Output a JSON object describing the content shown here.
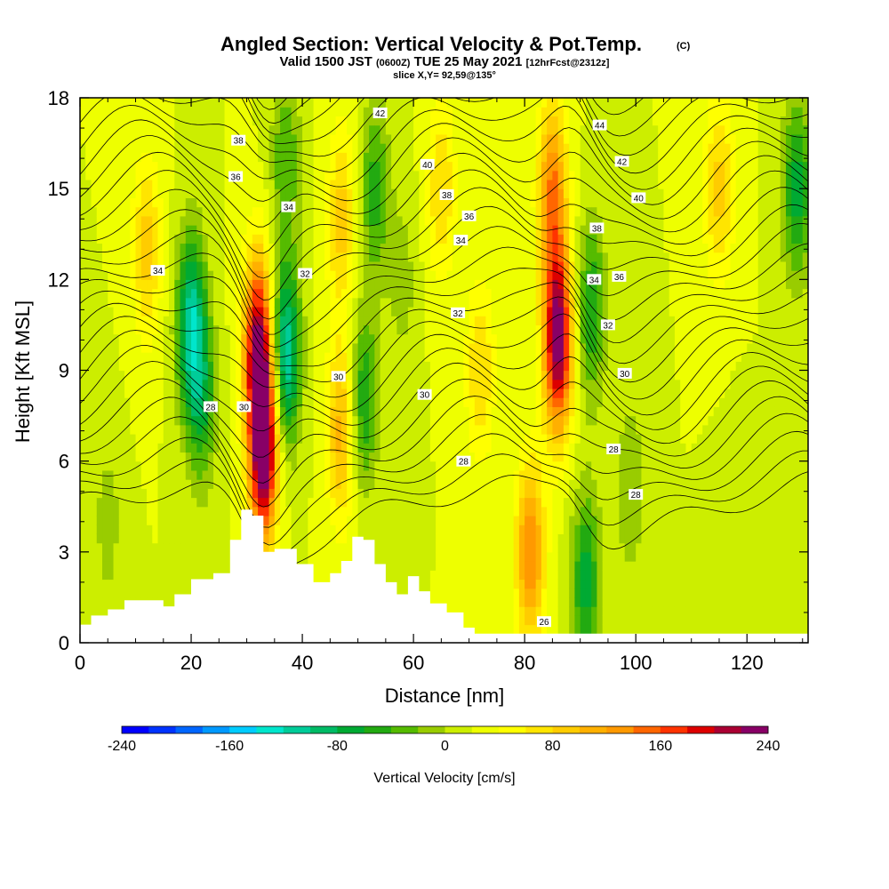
{
  "title": {
    "main": "Angled Section: Vertical Velocity & Pot.Temp.",
    "copyright": "(C)",
    "valid_prefix": "Valid 1500 JST",
    "valid_utc": "(0600Z)",
    "valid_date": "TUE 25 May 2021",
    "forecast": "[12hrFcst@2312z]",
    "slice": "slice X,Y= 92,59@135°"
  },
  "chart_data": {
    "type": "heatmap",
    "xlabel": "Distance [nm]",
    "ylabel": "Height [Kft MSL]",
    "xlim": [
      0,
      131
    ],
    "ylim": [
      0,
      18
    ],
    "x_ticks": [
      "0",
      "20",
      "40",
      "60",
      "80",
      "100",
      "120"
    ],
    "y_ticks": [
      "0",
      "3",
      "6",
      "9",
      "12",
      "15",
      "18"
    ],
    "background_value_cm_s": 20,
    "velocity_features": [
      {
        "x_nm": 20,
        "z_kft": 10.5,
        "value_cm_s": -130
      },
      {
        "x_nm": 22,
        "z_kft": 8,
        "value_cm_s": -70
      },
      {
        "x_nm": 33,
        "z_kft": 6.5,
        "value_cm_s": 240
      },
      {
        "x_nm": 32,
        "z_kft": 10,
        "value_cm_s": 180
      },
      {
        "x_nm": 37,
        "z_kft": 9.5,
        "value_cm_s": -140
      },
      {
        "x_nm": 37,
        "z_kft": 16,
        "value_cm_s": -60
      },
      {
        "x_nm": 47,
        "z_kft": 7,
        "value_cm_s": 90
      },
      {
        "x_nm": 47,
        "z_kft": 14,
        "value_cm_s": 70
      },
      {
        "x_nm": 51,
        "z_kft": 8,
        "value_cm_s": -80
      },
      {
        "x_nm": 53,
        "z_kft": 15,
        "value_cm_s": -70
      },
      {
        "x_nm": 58,
        "z_kft": 12,
        "value_cm_s": -30
      },
      {
        "x_nm": 65,
        "z_kft": 15,
        "value_cm_s": 60
      },
      {
        "x_nm": 72,
        "z_kft": 9,
        "value_cm_s": 60
      },
      {
        "x_nm": 81,
        "z_kft": 3,
        "value_cm_s": 120
      },
      {
        "x_nm": 86,
        "z_kft": 10,
        "value_cm_s": 220
      },
      {
        "x_nm": 85,
        "z_kft": 15,
        "value_cm_s": 120
      },
      {
        "x_nm": 91,
        "z_kft": 2,
        "value_cm_s": -90
      },
      {
        "x_nm": 92,
        "z_kft": 11,
        "value_cm_s": -80
      },
      {
        "x_nm": 99,
        "z_kft": 5,
        "value_cm_s": -40
      },
      {
        "x_nm": 129,
        "z_kft": 15,
        "value_cm_s": -90
      },
      {
        "x_nm": 12,
        "z_kft": 13,
        "value_cm_s": 70
      },
      {
        "x_nm": 5,
        "z_kft": 4,
        "value_cm_s": -30
      },
      {
        "x_nm": 115,
        "z_kft": 15,
        "value_cm_s": 70
      },
      {
        "x_nm": 118,
        "z_kft": 3,
        "value_cm_s": -20
      }
    ],
    "terrain": [
      [
        0,
        0.6
      ],
      [
        2,
        0.9
      ],
      [
        5,
        1.1
      ],
      [
        8,
        1.4
      ],
      [
        12,
        1.4
      ],
      [
        15,
        1.2
      ],
      [
        17,
        1.6
      ],
      [
        20,
        2.1
      ],
      [
        24,
        2.3
      ],
      [
        27,
        3.4
      ],
      [
        29,
        4.4
      ],
      [
        31,
        4.2
      ],
      [
        33,
        3.0
      ],
      [
        35,
        3.1
      ],
      [
        37,
        3.1
      ],
      [
        39,
        2.6
      ],
      [
        42,
        2.0
      ],
      [
        45,
        2.3
      ],
      [
        47,
        2.7
      ],
      [
        49,
        3.5
      ],
      [
        51,
        3.4
      ],
      [
        53,
        2.6
      ],
      [
        55,
        2.0
      ],
      [
        57,
        1.6
      ],
      [
        59,
        2.2
      ],
      [
        61,
        1.7
      ],
      [
        63,
        1.3
      ],
      [
        66,
        1.0
      ],
      [
        69,
        0.5
      ],
      [
        71,
        0.3
      ],
      [
        131,
        0.3
      ]
    ],
    "isentrope_labels": [
      {
        "text": "26",
        "x": 83.5,
        "y": 0.7
      },
      {
        "text": "28",
        "x": 23.5,
        "y": 7.8
      },
      {
        "text": "30",
        "x": 29.5,
        "y": 7.8
      },
      {
        "text": "28",
        "x": 69,
        "y": 6.0
      },
      {
        "text": "28",
        "x": 96,
        "y": 6.4
      },
      {
        "text": "28",
        "x": 100,
        "y": 4.9
      },
      {
        "text": "30",
        "x": 46.5,
        "y": 8.8
      },
      {
        "text": "30",
        "x": 62,
        "y": 8.2
      },
      {
        "text": "30",
        "x": 98,
        "y": 8.9
      },
      {
        "text": "32",
        "x": 40.5,
        "y": 12.2
      },
      {
        "text": "32",
        "x": 68,
        "y": 10.9
      },
      {
        "text": "32",
        "x": 95,
        "y": 10.5
      },
      {
        "text": "34",
        "x": 14,
        "y": 12.3
      },
      {
        "text": "34",
        "x": 37.5,
        "y": 14.4
      },
      {
        "text": "34",
        "x": 68.5,
        "y": 13.3
      },
      {
        "text": "34",
        "x": 92.5,
        "y": 12.0
      },
      {
        "text": "36",
        "x": 28,
        "y": 15.4
      },
      {
        "text": "36",
        "x": 70,
        "y": 14.1
      },
      {
        "text": "36",
        "x": 97,
        "y": 12.1
      },
      {
        "text": "38",
        "x": 28.5,
        "y": 16.6
      },
      {
        "text": "38",
        "x": 66,
        "y": 14.8
      },
      {
        "text": "38",
        "x": 93,
        "y": 13.7
      },
      {
        "text": "40",
        "x": 62.5,
        "y": 15.8
      },
      {
        "text": "40",
        "x": 100.5,
        "y": 14.7
      },
      {
        "text": "42",
        "x": 54,
        "y": 17.5
      },
      {
        "text": "42",
        "x": 97.5,
        "y": 15.9
      },
      {
        "text": "44",
        "x": 93.5,
        "y": 17.1
      }
    ],
    "colorbar": {
      "label": "Vertical Velocity [cm/s]",
      "min": -240,
      "max": 240,
      "step": 20,
      "tick_labels": [
        "-240",
        "-160",
        "-80",
        "0",
        "80",
        "160",
        "240"
      ],
      "colors": [
        "#0000ff",
        "#0033ff",
        "#0066ff",
        "#0099ff",
        "#00ccff",
        "#00e6cc",
        "#00cc99",
        "#00bb66",
        "#00aa33",
        "#22aa11",
        "#55bb00",
        "#99cc00",
        "#ccee00",
        "#eeff00",
        "#ffff00",
        "#ffe500",
        "#ffcc00",
        "#ffb000",
        "#ff9900",
        "#ff6600",
        "#ff3300",
        "#dd0000",
        "#aa0033",
        "#880066",
        "#660099"
      ]
    }
  }
}
